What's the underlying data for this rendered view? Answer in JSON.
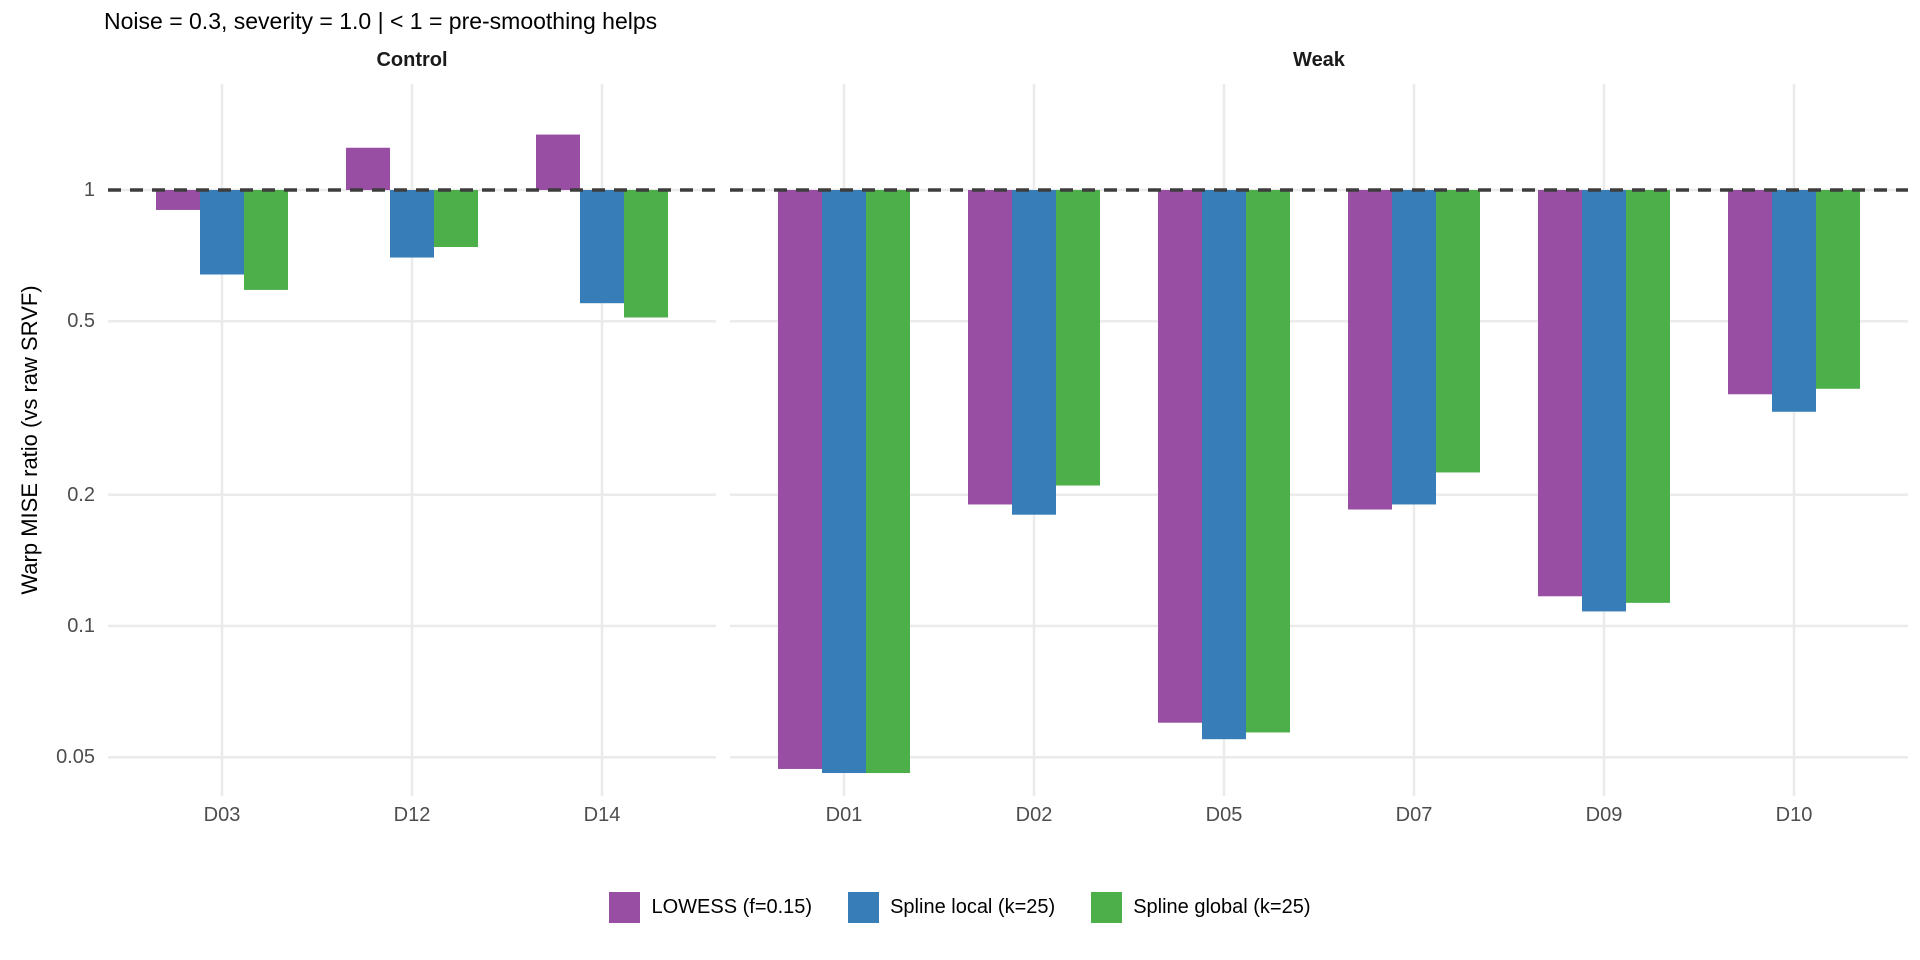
{
  "chart_data": {
    "type": "bar",
    "title": "Noise = 0.3, severity = 1.0 | < 1 = pre-smoothing helps",
    "ylabel": "Warp MISE ratio (vs raw SRVF)",
    "yscale": "log",
    "ylim": [
      0.042,
      1.75
    ],
    "yticks": [
      1,
      0.5,
      0.2,
      0.1,
      0.05
    ],
    "ytick_labels": [
      "1",
      "0.5",
      "0.2",
      "0.1",
      "0.05"
    ],
    "grid": true,
    "legend_position": "bottom",
    "reference_line": {
      "y": 1,
      "style": "dashed"
    },
    "series_names": [
      "LOWESS (f=0.15)",
      "Spline local (k=25)",
      "Spline global (k=25)"
    ],
    "series_colors": [
      "#984EA3",
      "#377EB8",
      "#4DAF4A"
    ],
    "colors": {
      "grid": "#EBEBEB",
      "reference": "#3D3D3D",
      "tick_text": "#4D4D4D",
      "text": "#000000"
    },
    "facets": [
      {
        "label": "Control",
        "categories": [
          "D03",
          "D12",
          "D14"
        ],
        "series": [
          {
            "name": "LOWESS (f=0.15)",
            "values": [
              0.9,
              1.25,
              1.34
            ]
          },
          {
            "name": "Spline local (k=25)",
            "values": [
              0.64,
              0.7,
              0.55
            ]
          },
          {
            "name": "Spline global (k=25)",
            "values": [
              0.59,
              0.74,
              0.51
            ]
          }
        ]
      },
      {
        "label": "Weak",
        "categories": [
          "D01",
          "D02",
          "D05",
          "D07",
          "D09",
          "D10"
        ],
        "series": [
          {
            "name": "LOWESS (f=0.15)",
            "values": [
              0.047,
              0.19,
              0.06,
              0.185,
              0.117,
              0.34
            ]
          },
          {
            "name": "Spline local (k=25)",
            "values": [
              0.046,
              0.18,
              0.055,
              0.19,
              0.108,
              0.31
            ]
          },
          {
            "name": "Spline global (k=25)",
            "values": [
              0.046,
              0.21,
              0.057,
              0.225,
              0.113,
              0.35
            ]
          }
        ]
      }
    ]
  }
}
